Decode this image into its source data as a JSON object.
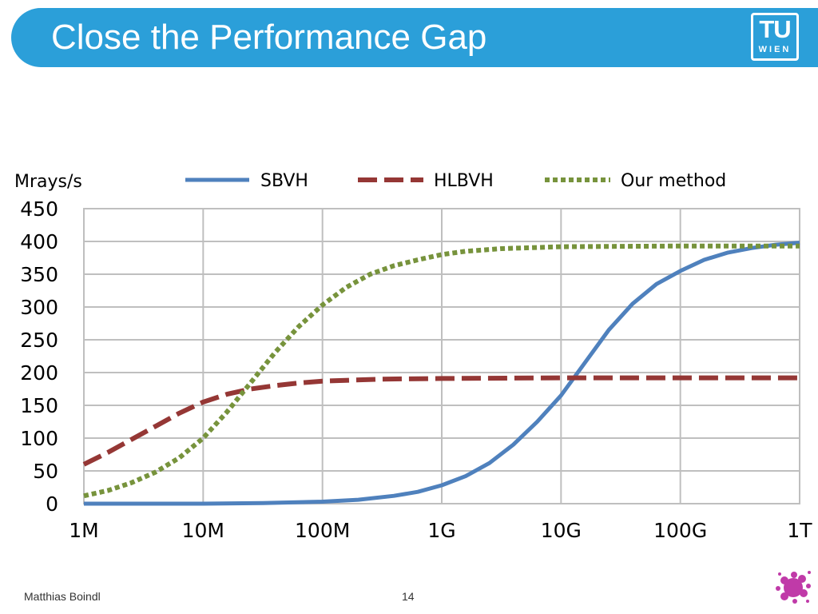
{
  "slide": {
    "title": "Close the Performance Gap",
    "logo_line1": "TU",
    "logo_line2": "WIEN",
    "author": "Matthias Boindl",
    "page_number": "14"
  },
  "colors": {
    "title_bar": "#2b9fd9",
    "sbvh": "#4f81bd",
    "hlbvh": "#953735",
    "our_method": "#77933c",
    "grid": "#bfbfbf",
    "splat": "#c03aa8"
  },
  "chart_data": {
    "type": "line",
    "title": "",
    "ylabel": "Mrays/s",
    "xlabel": "",
    "x_scale": "log",
    "ylim": [
      0,
      450
    ],
    "y_ticks": [
      0,
      50,
      100,
      150,
      200,
      250,
      300,
      350,
      400,
      450
    ],
    "categories": [
      "1M",
      "10M",
      "100M",
      "1G",
      "10G",
      "100G",
      "1T"
    ],
    "x_positions": [
      0,
      1,
      2,
      3,
      4,
      5,
      6
    ],
    "grid": true,
    "legend_position": "top",
    "series": [
      {
        "name": "SBVH",
        "style": "solid",
        "color": "#4f81bd",
        "points": [
          [
            0,
            0
          ],
          [
            1,
            0
          ],
          [
            1.5,
            1
          ],
          [
            2,
            3
          ],
          [
            2.3,
            6
          ],
          [
            2.6,
            12
          ],
          [
            2.8,
            18
          ],
          [
            3,
            28
          ],
          [
            3.2,
            42
          ],
          [
            3.4,
            62
          ],
          [
            3.6,
            90
          ],
          [
            3.8,
            125
          ],
          [
            4,
            165
          ],
          [
            4.2,
            215
          ],
          [
            4.4,
            265
          ],
          [
            4.6,
            305
          ],
          [
            4.8,
            335
          ],
          [
            5,
            355
          ],
          [
            5.2,
            372
          ],
          [
            5.4,
            383
          ],
          [
            5.6,
            390
          ],
          [
            5.8,
            395
          ],
          [
            6,
            398
          ]
        ]
      },
      {
        "name": "HLBVH",
        "style": "dashed",
        "color": "#953735",
        "points": [
          [
            0,
            60
          ],
          [
            0.2,
            78
          ],
          [
            0.4,
            98
          ],
          [
            0.6,
            118
          ],
          [
            0.8,
            138
          ],
          [
            1,
            155
          ],
          [
            1.2,
            167
          ],
          [
            1.4,
            175
          ],
          [
            1.6,
            180
          ],
          [
            1.8,
            184
          ],
          [
            2,
            187
          ],
          [
            2.5,
            190
          ],
          [
            3,
            191
          ],
          [
            4,
            192
          ],
          [
            5,
            192
          ],
          [
            6,
            192
          ]
        ]
      },
      {
        "name": "Our method",
        "style": "dotted",
        "color": "#77933c",
        "points": [
          [
            0,
            12
          ],
          [
            0.2,
            20
          ],
          [
            0.4,
            32
          ],
          [
            0.6,
            48
          ],
          [
            0.8,
            70
          ],
          [
            1,
            100
          ],
          [
            1.2,
            140
          ],
          [
            1.4,
            185
          ],
          [
            1.6,
            230
          ],
          [
            1.8,
            270
          ],
          [
            2,
            303
          ],
          [
            2.2,
            330
          ],
          [
            2.4,
            350
          ],
          [
            2.6,
            363
          ],
          [
            2.8,
            372
          ],
          [
            3,
            380
          ],
          [
            3.2,
            385
          ],
          [
            3.5,
            389
          ],
          [
            4,
            392
          ],
          [
            5,
            393
          ],
          [
            6,
            393
          ]
        ]
      }
    ]
  }
}
